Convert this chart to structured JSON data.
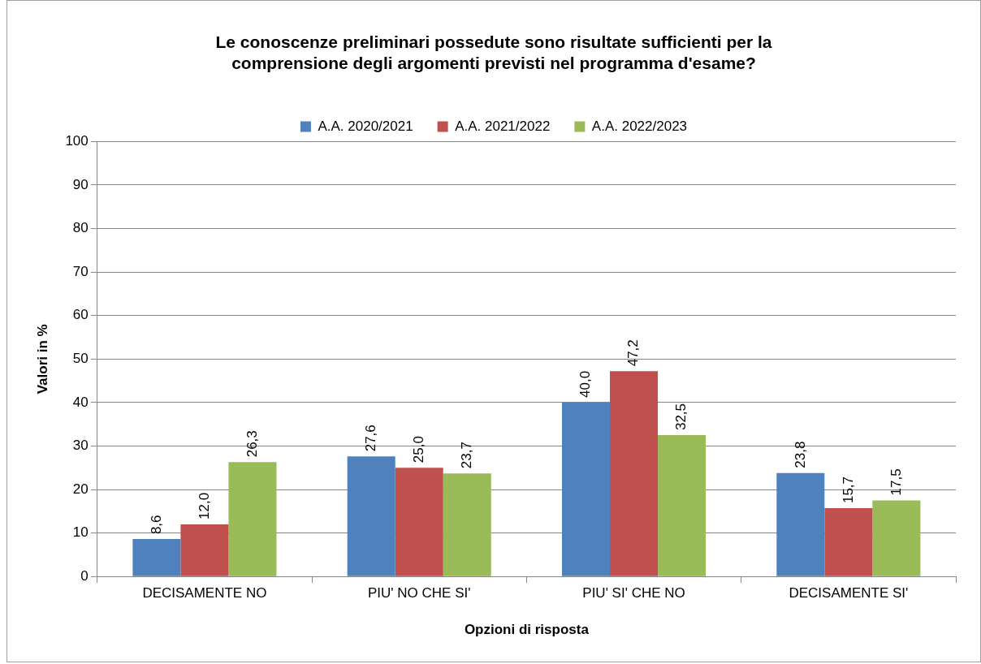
{
  "chart_data": {
    "type": "bar",
    "title": "Le conoscenze preliminari possedute sono risultate sufficienti per la comprensione degli argomenti previsti nel programma d'esame?",
    "xlabel": "Opzioni di risposta",
    "ylabel": "Valori in %",
    "categories": [
      "DECISAMENTE NO",
      "PIU' NO CHE SI'",
      "PIU' SI' CHE NO",
      "DECISAMENTE SI'"
    ],
    "series": [
      {
        "name": "A.A. 2020/2021",
        "color": "#4f81bd",
        "values": [
          8.6,
          27.6,
          40.0,
          23.8
        ],
        "value_labels": [
          "8,6",
          "27,6",
          "40,0",
          "23,8"
        ]
      },
      {
        "name": "A.A. 2021/2022",
        "color": "#c0504d",
        "values": [
          12.0,
          25.0,
          47.2,
          15.7
        ],
        "value_labels": [
          "12,0",
          "25,0",
          "47,2",
          "15,7"
        ]
      },
      {
        "name": "A.A. 2022/2023",
        "color": "#9bbb59",
        "values": [
          26.3,
          23.7,
          32.5,
          17.5
        ],
        "value_labels": [
          "26,3",
          "23,7",
          "32,5",
          "17,5"
        ]
      }
    ],
    "ylim": [
      0,
      100
    ],
    "yticks": [
      0,
      10,
      20,
      30,
      40,
      50,
      60,
      70,
      80,
      90,
      100
    ],
    "grid": "y",
    "legend": "top"
  }
}
